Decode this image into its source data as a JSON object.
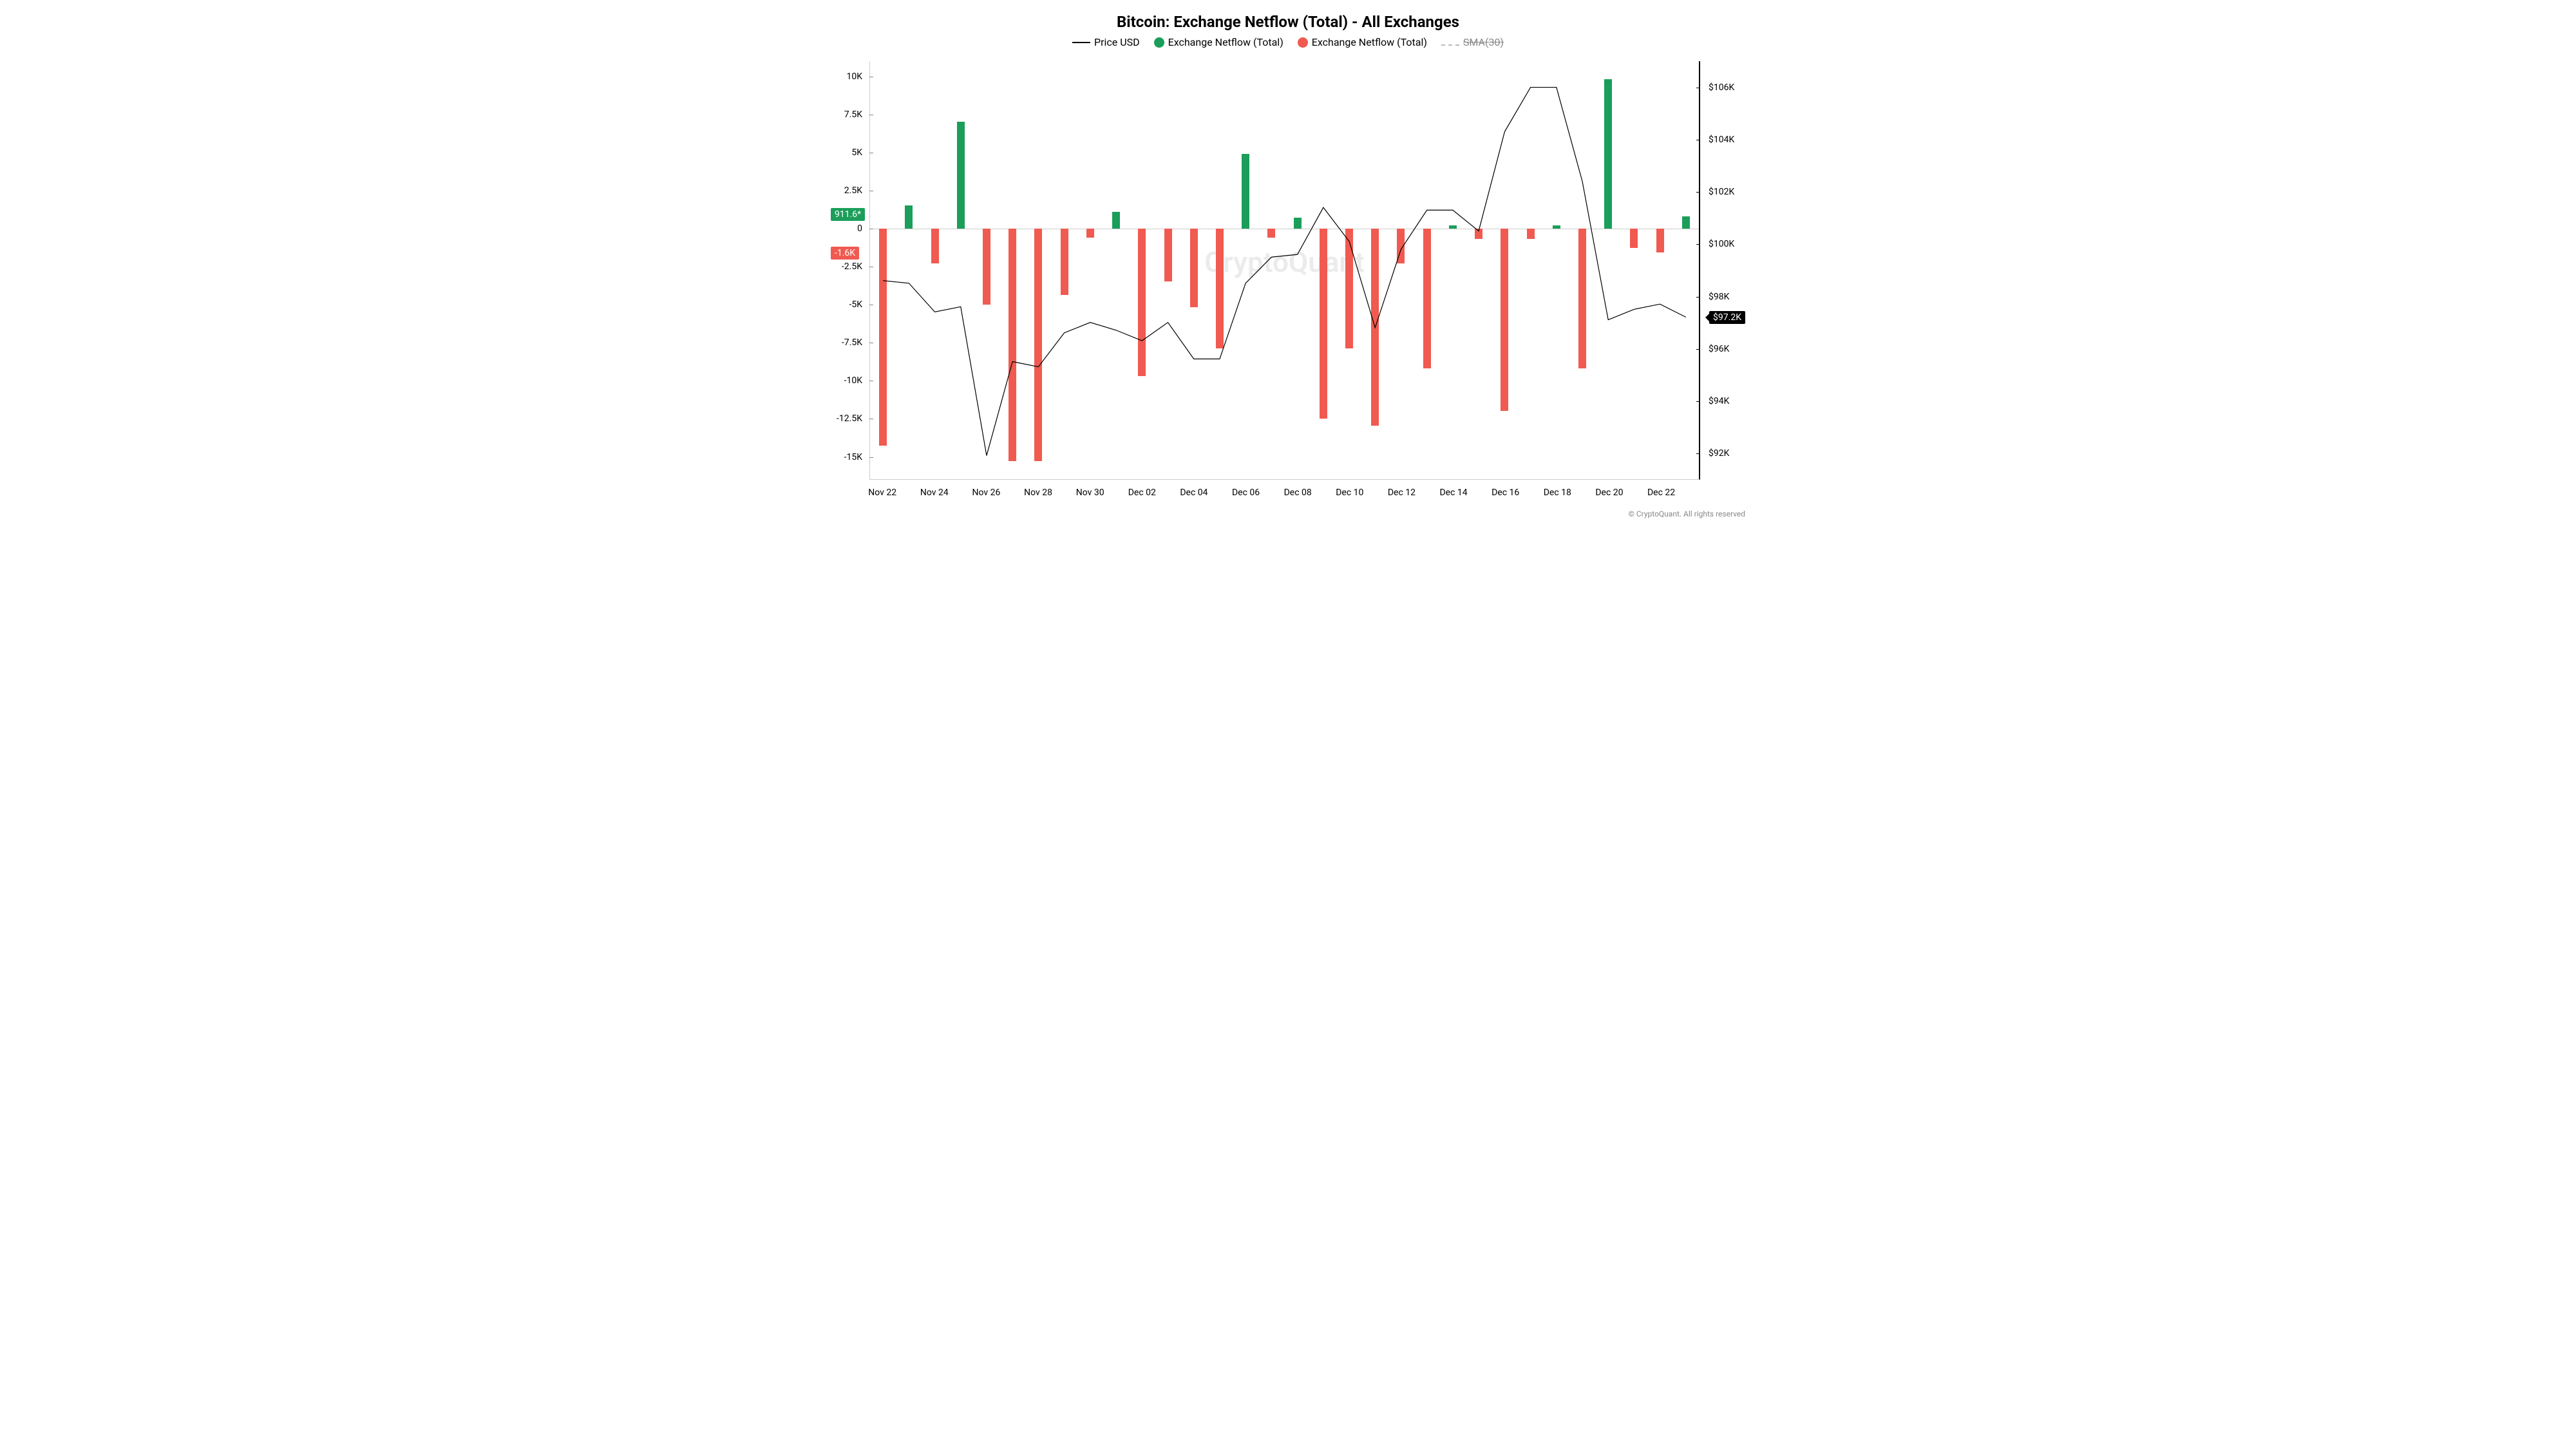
{
  "title": "Bitcoin: Exchange Netflow (Total) - All Exchanges",
  "legend": {
    "price": "Price USD",
    "pos": "Exchange Netflow (Total)",
    "neg": "Exchange Netflow (Total)",
    "sma": "SMA(30)"
  },
  "colors": {
    "pos": "#1b9e5a",
    "neg": "#f05a50",
    "line": "#000000",
    "grid": "#cccccc",
    "text": "#000000",
    "badge_pos": "#1b9e5a",
    "badge_neg": "#f05a50",
    "badge_price": "#000000",
    "watermark": "rgba(0,0,0,0.08)"
  },
  "watermark": "CryptoQuant",
  "credit": "© CryptoQuant. All rights reserved",
  "left_axis": {
    "min": -16500,
    "max": 11000,
    "ticks": [
      {
        "v": 10000,
        "label": "10K"
      },
      {
        "v": 7500,
        "label": "7.5K"
      },
      {
        "v": 5000,
        "label": "5K"
      },
      {
        "v": 2500,
        "label": "2.5K"
      },
      {
        "v": 0,
        "label": "0"
      },
      {
        "v": -2500,
        "label": "-2.5K"
      },
      {
        "v": -5000,
        "label": "-5K"
      },
      {
        "v": -7500,
        "label": "-7.5K"
      },
      {
        "v": -10000,
        "label": "-10K"
      },
      {
        "v": -12500,
        "label": "-12.5K"
      },
      {
        "v": -15000,
        "label": "-15K"
      }
    ]
  },
  "right_axis": {
    "min": 91000,
    "max": 107000,
    "ticks": [
      {
        "v": 106000,
        "label": "$106K"
      },
      {
        "v": 104000,
        "label": "$104K"
      },
      {
        "v": 102000,
        "label": "$102K"
      },
      {
        "v": 100000,
        "label": "$100K"
      },
      {
        "v": 98000,
        "label": "$98K"
      },
      {
        "v": 96000,
        "label": "$96K"
      },
      {
        "v": 94000,
        "label": "$94K"
      },
      {
        "v": 92000,
        "label": "$92K"
      }
    ]
  },
  "x_ticks": [
    0,
    2,
    4,
    6,
    8,
    10,
    12,
    14,
    16,
    18,
    20,
    22,
    24,
    26,
    28,
    30
  ],
  "x_tick_labels": [
    "Nov 22",
    "Nov 24",
    "Nov 26",
    "Nov 28",
    "Nov 30",
    "Dec 02",
    "Dec 04",
    "Dec 06",
    "Dec 08",
    "Dec 10",
    "Dec 12",
    "Dec 14",
    "Dec 16",
    "Dec 18",
    "Dec 20",
    "Dec 22"
  ],
  "badges": {
    "pos": {
      "value": 911.6,
      "label": "911.6*"
    },
    "neg": {
      "value": -1600,
      "label": "-1.6K"
    },
    "price": {
      "value": 97200,
      "label": "$97.2K"
    }
  },
  "bars": [
    {
      "i": 0,
      "v": -14300
    },
    {
      "i": 1,
      "v": 1500
    },
    {
      "i": 2,
      "v": -2300
    },
    {
      "i": 3,
      "v": 7000
    },
    {
      "i": 4,
      "v": -5000
    },
    {
      "i": 5,
      "v": -15300
    },
    {
      "i": 6,
      "v": -15300
    },
    {
      "i": 7,
      "v": -4400
    },
    {
      "i": 8,
      "v": -600
    },
    {
      "i": 9,
      "v": 1100
    },
    {
      "i": 10,
      "v": -9700
    },
    {
      "i": 11,
      "v": -3500
    },
    {
      "i": 12,
      "v": -5200
    },
    {
      "i": 13,
      "v": -7900
    },
    {
      "i": 14,
      "v": 4900
    },
    {
      "i": 15,
      "v": -600
    },
    {
      "i": 16,
      "v": 700
    },
    {
      "i": 17,
      "v": -12500
    },
    {
      "i": 18,
      "v": -7900
    },
    {
      "i": 19,
      "v": -13000
    },
    {
      "i": 20,
      "v": -2300
    },
    {
      "i": 21,
      "v": -9200
    },
    {
      "i": 22,
      "v": 200
    },
    {
      "i": 23,
      "v": -700
    },
    {
      "i": 24,
      "v": -12000
    },
    {
      "i": 25,
      "v": -700
    },
    {
      "i": 26,
      "v": 200
    },
    {
      "i": 27,
      "v": -9200
    },
    {
      "i": 28,
      "v": 9800
    },
    {
      "i": 29,
      "v": -1300
    },
    {
      "i": 30,
      "v": -1600
    },
    {
      "i": 31,
      "v": 800
    }
  ],
  "price": [
    98600,
    98500,
    97400,
    97600,
    91900,
    95500,
    95300,
    96600,
    97000,
    96700,
    96300,
    97000,
    95600,
    95600,
    98500,
    99500,
    99600,
    101400,
    100100,
    96800,
    99800,
    101300,
    101300,
    100500,
    104300,
    106000,
    106000,
    102400,
    97100,
    97500,
    97700,
    97200
  ]
}
